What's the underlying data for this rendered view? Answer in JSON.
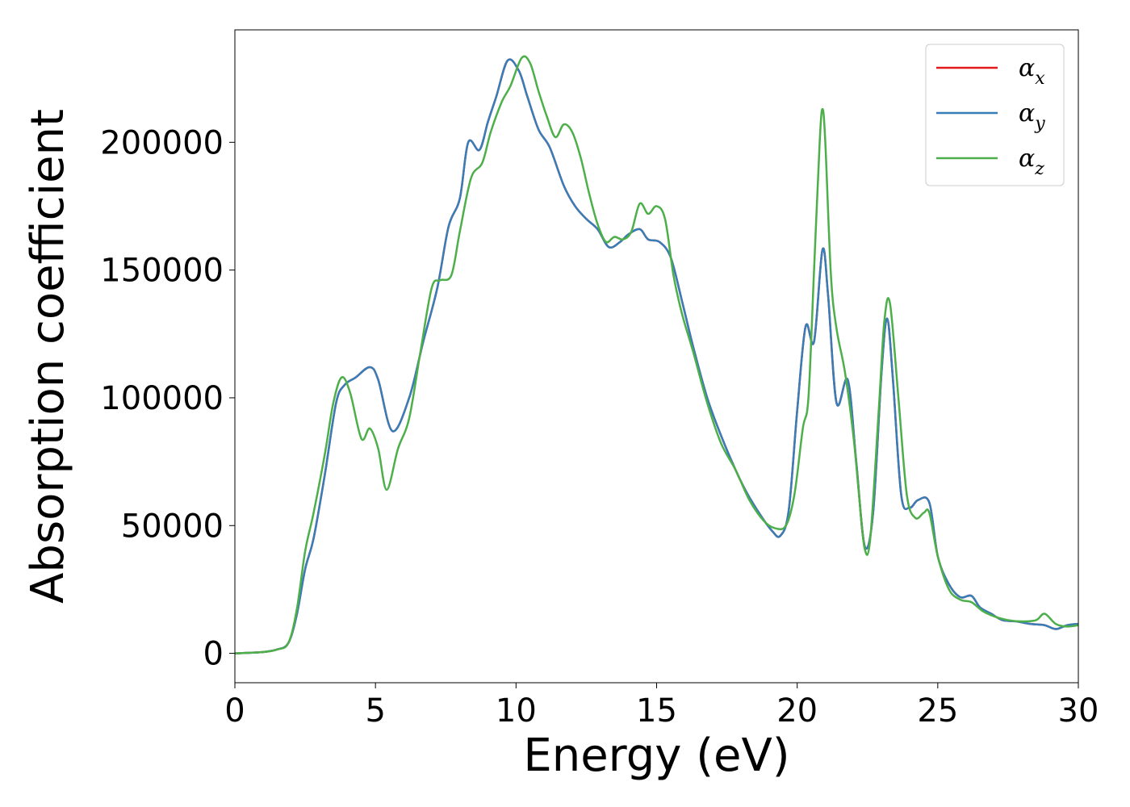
{
  "chart_data": {
    "type": "line",
    "xlabel": "Energy (eV)",
    "ylabel": "Absorption coefficient",
    "xlim": [
      0,
      30
    ],
    "ylim": [
      -11500,
      244000
    ],
    "xticks": [
      0,
      5,
      10,
      15,
      20,
      25,
      30
    ],
    "yticks": [
      0,
      50000,
      100000,
      150000,
      200000
    ],
    "grid": false,
    "legend_position": "top-right",
    "series": [
      {
        "name": "αx",
        "legend_base": "α",
        "legend_sub": "x",
        "color": "#e41a1c",
        "x": [
          0,
          1,
          1.5,
          1.9,
          2.2,
          2.5,
          2.8,
          3.2,
          3.6,
          3.9,
          4.3,
          4.8,
          5.1,
          5.6,
          6.2,
          6.7,
          7.2,
          7.6,
          8.0,
          8.3,
          8.7,
          9.0,
          9.3,
          9.7,
          10.1,
          10.4,
          10.8,
          11.2,
          11.7,
          12.1,
          12.5,
          12.9,
          13.3,
          13.7,
          14.0,
          14.4,
          14.7,
          15.1,
          15.5,
          15.9,
          16.3,
          16.8,
          17.3,
          17.8,
          18.2,
          18.7,
          19.1,
          19.4,
          19.7,
          20.0,
          20.3,
          20.6,
          20.9,
          21.1,
          21.4,
          21.8,
          22.1,
          22.4,
          22.7,
          23.0,
          23.2,
          23.4,
          23.7,
          24.0,
          24.3,
          24.7,
          25.0,
          25.4,
          25.8,
          26.2,
          26.5,
          26.9,
          27.3,
          27.8,
          28.3,
          28.8,
          29.2,
          29.6,
          30.0
        ],
        "y": [
          0,
          500,
          1500,
          4000,
          15000,
          33000,
          45000,
          70000,
          98000,
          105000,
          108000,
          112000,
          107000,
          87000,
          100000,
          122000,
          143000,
          167000,
          178000,
          200000,
          197000,
          208000,
          218000,
          232000,
          228000,
          218000,
          205000,
          198000,
          183000,
          175000,
          170000,
          166000,
          159000,
          161000,
          164000,
          166000,
          162000,
          161000,
          155000,
          138000,
          120000,
          100000,
          85000,
          72000,
          63000,
          54000,
          48000,
          46000,
          56000,
          95000,
          128000,
          122000,
          158000,
          140000,
          98000,
          107000,
          75000,
          42000,
          55000,
          110000,
          131000,
          108000,
          62000,
          57000,
          60000,
          59000,
          38000,
          27000,
          22000,
          22500,
          18000,
          15500,
          13000,
          12500,
          11500,
          11000,
          9500,
          11000,
          11500
        ]
      },
      {
        "name": "αy",
        "legend_base": "α",
        "legend_sub": "y",
        "color": "#377eb8",
        "x": [
          0,
          1,
          1.5,
          1.9,
          2.2,
          2.5,
          2.8,
          3.2,
          3.6,
          3.9,
          4.3,
          4.8,
          5.1,
          5.6,
          6.2,
          6.7,
          7.2,
          7.6,
          8.0,
          8.3,
          8.7,
          9.0,
          9.3,
          9.7,
          10.1,
          10.4,
          10.8,
          11.2,
          11.7,
          12.1,
          12.5,
          12.9,
          13.3,
          13.7,
          14.0,
          14.4,
          14.7,
          15.1,
          15.5,
          15.9,
          16.3,
          16.8,
          17.3,
          17.8,
          18.2,
          18.7,
          19.1,
          19.4,
          19.7,
          20.0,
          20.3,
          20.6,
          20.9,
          21.1,
          21.4,
          21.8,
          22.1,
          22.4,
          22.7,
          23.0,
          23.2,
          23.4,
          23.7,
          24.0,
          24.3,
          24.7,
          25.0,
          25.4,
          25.8,
          26.2,
          26.5,
          26.9,
          27.3,
          27.8,
          28.3,
          28.8,
          29.2,
          29.6,
          30.0
        ],
        "y": [
          0,
          500,
          1500,
          4000,
          15000,
          33000,
          45000,
          70000,
          98000,
          105000,
          108000,
          112000,
          107000,
          87000,
          100000,
          122000,
          143000,
          167000,
          178000,
          200000,
          197000,
          208000,
          218000,
          232000,
          228000,
          218000,
          205000,
          198000,
          183000,
          175000,
          170000,
          166000,
          159000,
          161000,
          164000,
          166000,
          162000,
          161000,
          155000,
          138000,
          120000,
          100000,
          85000,
          72000,
          63000,
          54000,
          48000,
          46000,
          56000,
          95000,
          128000,
          122000,
          158000,
          140000,
          98000,
          107000,
          75000,
          42000,
          55000,
          110000,
          131000,
          108000,
          62000,
          57000,
          60000,
          59000,
          38000,
          27000,
          22000,
          22500,
          18000,
          15500,
          13000,
          12500,
          11500,
          11000,
          9500,
          11000,
          11500
        ]
      },
      {
        "name": "αz",
        "legend_base": "α",
        "legend_sub": "z",
        "color": "#4daf4a",
        "x": [
          0,
          1,
          1.5,
          1.9,
          2.2,
          2.5,
          2.8,
          3.2,
          3.5,
          3.8,
          4.1,
          4.5,
          4.8,
          5.1,
          5.4,
          5.8,
          6.2,
          6.6,
          7.0,
          7.3,
          7.7,
          8.0,
          8.4,
          8.8,
          9.1,
          9.5,
          9.8,
          10.2,
          10.5,
          10.8,
          11.1,
          11.4,
          11.7,
          12.0,
          12.3,
          12.6,
          12.9,
          13.2,
          13.5,
          13.8,
          14.1,
          14.4,
          14.7,
          15.0,
          15.3,
          15.6,
          15.9,
          16.3,
          16.8,
          17.3,
          17.8,
          18.3,
          18.8,
          19.2,
          19.6,
          19.9,
          20.2,
          20.4,
          20.6,
          20.8,
          20.9,
          21.0,
          21.2,
          21.4,
          21.7,
          22.0,
          22.2,
          22.4,
          22.6,
          22.9,
          23.1,
          23.3,
          23.6,
          23.9,
          24.2,
          24.5,
          24.7,
          25.0,
          25.4,
          25.8,
          26.2,
          26.6,
          27.0,
          27.5,
          28.0,
          28.5,
          28.8,
          29.2,
          29.6,
          30.0
        ],
        "y": [
          0,
          500,
          1500,
          4000,
          17000,
          40000,
          55000,
          78000,
          98000,
          108000,
          102000,
          84000,
          88000,
          80000,
          64000,
          80000,
          92000,
          118000,
          143000,
          146000,
          148000,
          165000,
          186000,
          192000,
          204000,
          216000,
          222000,
          233000,
          231000,
          220000,
          210000,
          202000,
          207000,
          204000,
          194000,
          180000,
          168000,
          161000,
          163000,
          162000,
          165000,
          176000,
          172000,
          175000,
          170000,
          148000,
          133000,
          118000,
          98000,
          82000,
          72000,
          60000,
          52000,
          49000,
          50000,
          62000,
          88000,
          100000,
          150000,
          200000,
          213000,
          200000,
          148000,
          127000,
          110000,
          85000,
          62000,
          41000,
          45000,
          95000,
          130000,
          137000,
          100000,
          62000,
          53000,
          55000,
          55000,
          38000,
          25000,
          21000,
          20000,
          16500,
          14500,
          13000,
          12500,
          13000,
          15500,
          11500,
          10500,
          11000
        ]
      }
    ]
  }
}
